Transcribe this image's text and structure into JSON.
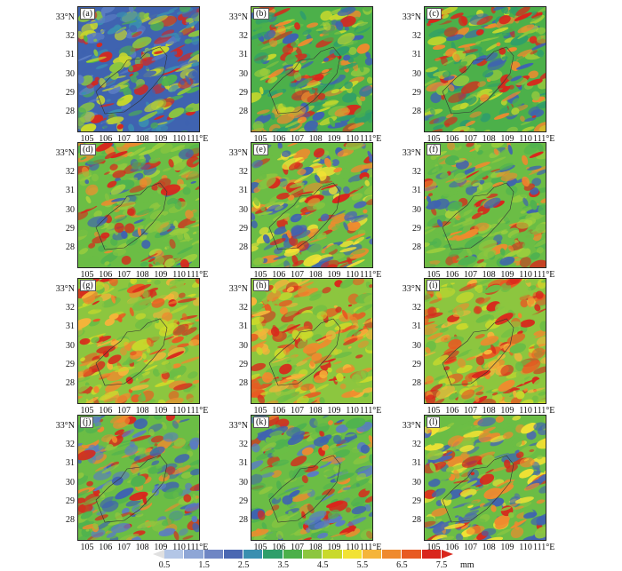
{
  "panels": [
    {
      "label": "(a)",
      "style": "blue"
    },
    {
      "label": "(b)",
      "style": "mixed"
    },
    {
      "label": "(c)",
      "style": "mixed"
    },
    {
      "label": "(d)",
      "style": "green"
    },
    {
      "label": "(e)",
      "style": "warm"
    },
    {
      "label": "(f)",
      "style": "green"
    },
    {
      "label": "(g)",
      "style": "hot"
    },
    {
      "label": "(h)",
      "style": "hot"
    },
    {
      "label": "(i)",
      "style": "hot"
    },
    {
      "label": "(j)",
      "style": "cool"
    },
    {
      "label": "(k)",
      "style": "cool"
    },
    {
      "label": "(l)",
      "style": "warm"
    }
  ],
  "y_ticks": [
    "33°N",
    "32",
    "31",
    "30",
    "29",
    "28"
  ],
  "x_ticks": [
    "105",
    "106",
    "107",
    "108",
    "109",
    "110",
    "111°E"
  ],
  "colorbar": {
    "ticks": [
      "0.5",
      "1.5",
      "2.5",
      "3.5",
      "4.5",
      "5.5",
      "6.5",
      "7.5"
    ],
    "unit": "mm",
    "colors": [
      "#b3c6e6",
      "#8ea6d6",
      "#6f86c4",
      "#4b68b2",
      "#3a8fb0",
      "#2f9e6a",
      "#4cb04a",
      "#8cc63f",
      "#c9d92b",
      "#f2e234",
      "#f5b43a",
      "#ef8a2e",
      "#e85a22",
      "#d9261c"
    ],
    "low_color": "#ffffff",
    "high_color": "#d9261c"
  }
}
